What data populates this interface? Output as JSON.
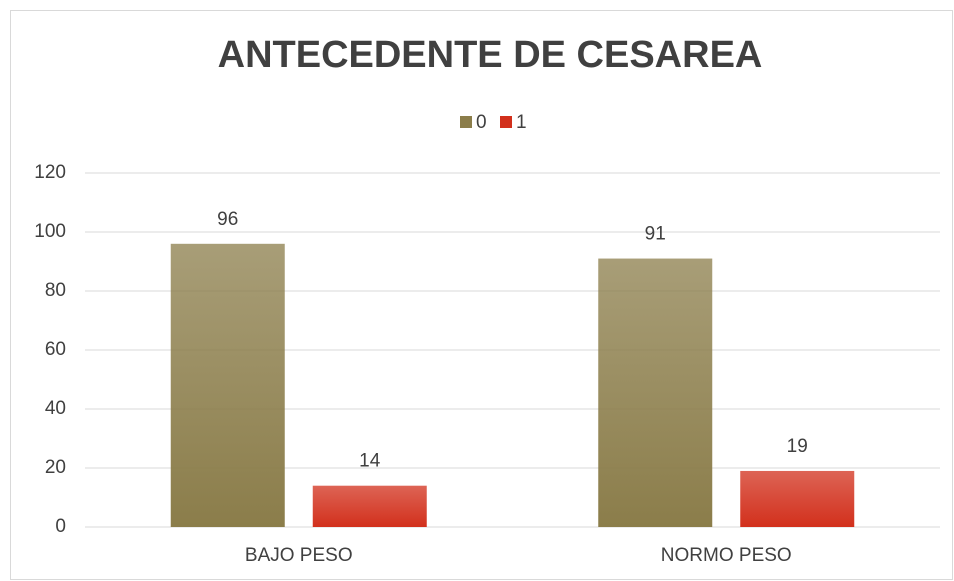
{
  "chart_data": {
    "type": "bar",
    "title": "ANTECEDENTE DE CESAREA",
    "categories": [
      "BAJO PESO",
      "NORMO PESO"
    ],
    "series": [
      {
        "name": "0",
        "color": "#8b7d4a",
        "values": [
          96,
          91
        ]
      },
      {
        "name": "1",
        "color": "#d2301c",
        "values": [
          14,
          19
        ]
      }
    ],
    "ylim": [
      0,
      120
    ],
    "yticks": [
      0,
      20,
      40,
      60,
      80,
      100,
      120
    ],
    "grid": true,
    "legend": "top"
  }
}
